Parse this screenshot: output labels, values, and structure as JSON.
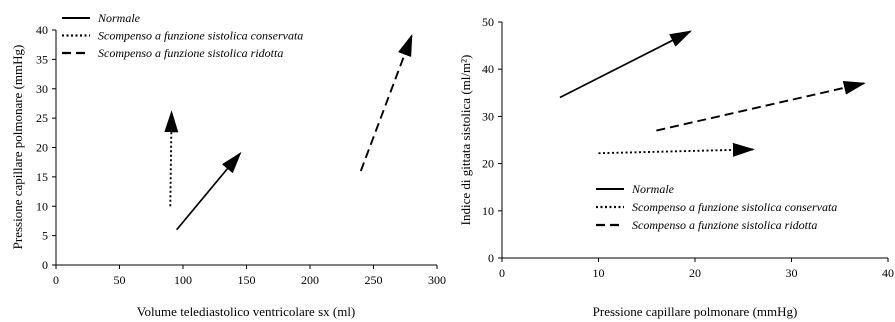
{
  "chart_data": [
    {
      "type": "line",
      "xlabel": "Volume telediastolico ventricolare sx  (ml)",
      "ylabel": "Pressione capillare polmonare  (mmHg)",
      "xlim": [
        0,
        300
      ],
      "ylim": [
        0,
        40
      ],
      "xticks": [
        "0",
        "50",
        "100",
        "150",
        "200",
        "250",
        "300"
      ],
      "yticks": [
        "0",
        "5",
        "10",
        "15",
        "20",
        "25",
        "30",
        "35",
        "40"
      ],
      "grid": false,
      "legend_position": "top-left",
      "series": [
        {
          "name": "Normale",
          "style": "solid",
          "points": [
            [
              95,
              6
            ],
            [
              145,
              19
            ]
          ]
        },
        {
          "name": "Scompenso a funzione sistolica  conservata",
          "style": "dotted",
          "points": [
            [
              90,
              10
            ],
            [
              91,
              26
            ]
          ]
        },
        {
          "name": "Scompenso a funzione  sistolica  ridotta",
          "style": "dashed",
          "points": [
            [
              240,
              16
            ],
            [
              280,
              39
            ]
          ]
        }
      ]
    },
    {
      "type": "line",
      "xlabel": "Pressione capillare polmonare  (mmHg)",
      "ylabel": "Indice di gittata sistolica  (ml/m²)",
      "xlim": [
        0,
        40
      ],
      "ylim": [
        0,
        50
      ],
      "xticks": [
        "0",
        "10",
        "20",
        "30",
        "40"
      ],
      "yticks": [
        "0",
        "10",
        "20",
        "30",
        "40",
        "50"
      ],
      "grid": false,
      "legend_position": "bottom-right",
      "series": [
        {
          "name": "Normale",
          "style": "solid",
          "points": [
            [
              6,
              34
            ],
            [
              19.5,
              48
            ]
          ]
        },
        {
          "name": "Scompenso a funzione sistolica  conservata",
          "style": "dotted",
          "points": [
            [
              10,
              22.2
            ],
            [
              26,
              23
            ]
          ]
        },
        {
          "name": "Scompenso a funzione  sistolica  ridotta",
          "style": "dashed",
          "points": [
            [
              16,
              27
            ],
            [
              37.5,
              37
            ]
          ]
        }
      ]
    }
  ]
}
